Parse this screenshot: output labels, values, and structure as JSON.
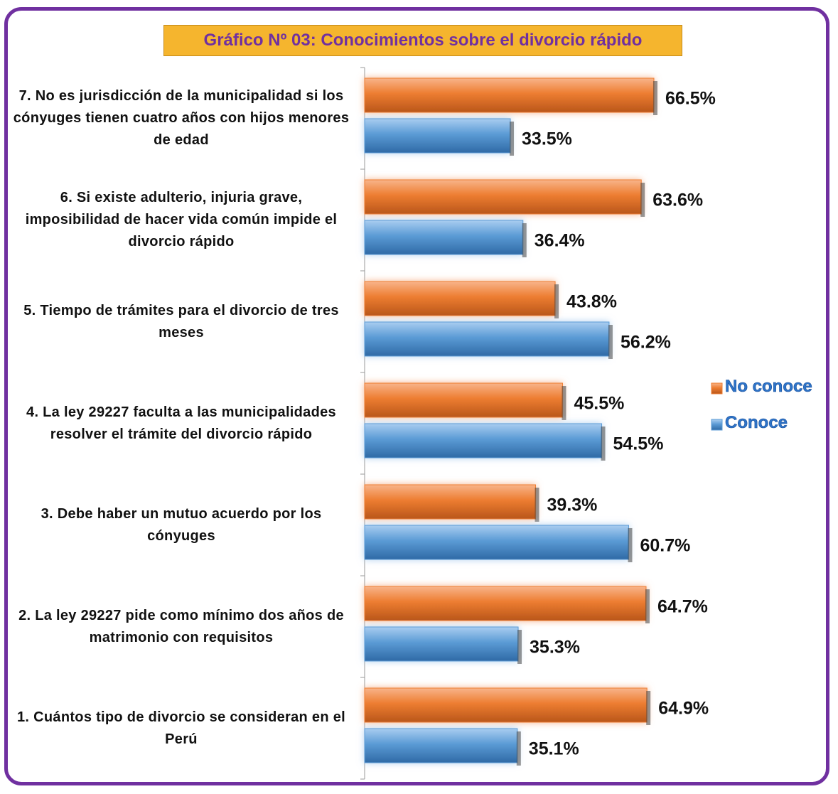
{
  "chart_data": {
    "type": "bar",
    "orientation": "horizontal",
    "title": "Gráfico Nº 03: Conocimientos sobre el divorcio rápido",
    "categories": [
      "1. Cuántos tipo de divorcio se consideran en el Perú",
      "2. La ley 29227 pide como mínimo dos años de matrimonio con requisitos",
      "3. Debe haber un mutuo acuerdo por los cónyuges",
      "4. La ley 29227 faculta a las municipalidades resolver el trámite del divorcio rápido",
      "5. Tiempo de trámites para el divorcio de tres meses",
      "6. Si existe adulterio, injuria grave, imposibilidad de hacer vida común impide el divorcio rápido",
      "7. No es jurisdicción de la municipalidad si los cónyuges tienen cuatro años con hijos menores de edad"
    ],
    "series": [
      {
        "name": "No conoce",
        "color": "#ed7d31",
        "values": [
          64.9,
          64.7,
          39.3,
          45.5,
          43.8,
          63.6,
          66.5
        ],
        "value_labels": [
          "64.9%",
          "64.7%",
          "39.3%",
          "45.5%",
          "43.8%",
          "63.6%",
          "66.5%"
        ]
      },
      {
        "name": "Conoce",
        "color": "#5b9bd5",
        "values": [
          35.1,
          35.3,
          60.7,
          54.5,
          56.2,
          36.4,
          33.5
        ],
        "value_labels": [
          "35.1%",
          "35.3%",
          "60.7%",
          "54.5%",
          "56.2%",
          "36.4%",
          "33.5%"
        ]
      }
    ],
    "xlim": [
      0,
      100
    ],
    "legend": "right"
  }
}
